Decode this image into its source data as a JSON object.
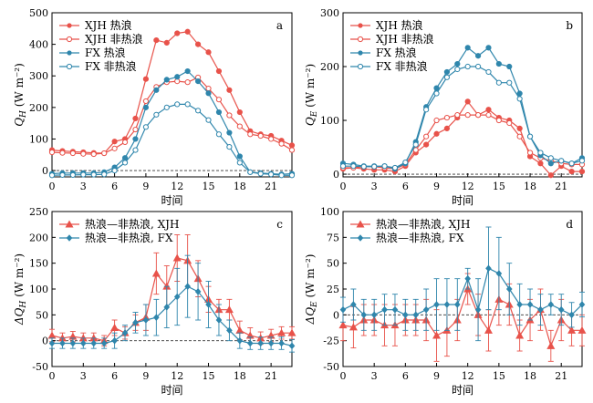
{
  "chart_data": [
    {
      "panel_label": "a",
      "type": "line",
      "ylabel": "Q_H (W m⁻²)",
      "xlabel": "时间",
      "x_ticks": [
        0,
        3,
        6,
        9,
        12,
        15,
        18,
        21
      ],
      "y_ticks": [
        0,
        100,
        200,
        300,
        400,
        500
      ],
      "xlim": [
        0,
        23
      ],
      "ylim": [
        -20,
        500
      ],
      "zero_line": true,
      "legend_position": "top-left",
      "x": [
        0,
        1,
        2,
        3,
        4,
        5,
        6,
        7,
        8,
        9,
        10,
        11,
        12,
        13,
        14,
        15,
        16,
        17,
        18,
        19,
        20,
        21,
        22,
        23
      ],
      "series": [
        {
          "name": "XJH 热浪",
          "color": "#e8524a",
          "marker": "filled-circle",
          "values": [
            65,
            62,
            60,
            58,
            56,
            55,
            92,
            100,
            165,
            290,
            413,
            405,
            435,
            440,
            400,
            375,
            315,
            255,
            185,
            125,
            115,
            110,
            95,
            80
          ]
        },
        {
          "name": "XJH 非热浪",
          "color": "#e8524a",
          "marker": "open-circle",
          "values": [
            58,
            56,
            55,
            53,
            52,
            55,
            70,
            90,
            130,
            220,
            265,
            280,
            283,
            280,
            295,
            260,
            225,
            175,
            140,
            115,
            110,
            100,
            85,
            65
          ]
        },
        {
          "name": "FX 热浪",
          "color": "#2f86ac",
          "marker": "filled-circle",
          "values": [
            -10,
            -8,
            -8,
            -8,
            -8,
            -5,
            10,
            40,
            100,
            200,
            255,
            288,
            297,
            315,
            283,
            245,
            185,
            120,
            45,
            -5,
            -8,
            -10,
            -12,
            -10
          ]
        },
        {
          "name": "FX 非热浪",
          "color": "#2f86ac",
          "marker": "open-circle",
          "values": [
            -15,
            -14,
            -14,
            -13,
            -13,
            -12,
            0,
            25,
            65,
            138,
            177,
            200,
            210,
            210,
            190,
            160,
            115,
            75,
            25,
            -5,
            -10,
            -12,
            -15,
            -15
          ]
        }
      ]
    },
    {
      "panel_label": "b",
      "type": "line",
      "ylabel": "Q_E (W m⁻²)",
      "xlabel": "时间",
      "x_ticks": [
        0,
        3,
        6,
        9,
        12,
        15,
        18,
        21
      ],
      "y_ticks": [
        0,
        100,
        200,
        300
      ],
      "xlim": [
        0,
        23
      ],
      "ylim": [
        -5,
        300
      ],
      "zero_line": true,
      "legend_position": "top-left",
      "x": [
        0,
        1,
        2,
        3,
        4,
        5,
        6,
        7,
        8,
        9,
        10,
        11,
        12,
        13,
        14,
        15,
        16,
        17,
        18,
        19,
        20,
        21,
        22,
        23
      ],
      "series": [
        {
          "name": "XJH 热浪",
          "color": "#e8524a",
          "marker": "filled-circle",
          "values": [
            10,
            12,
            10,
            8,
            8,
            5,
            15,
            40,
            55,
            75,
            85,
            105,
            135,
            110,
            120,
            105,
            100,
            85,
            33,
            20,
            -2,
            15,
            5,
            5
          ]
        },
        {
          "name": "XJH 非热浪",
          "color": "#e8524a",
          "marker": "open-circle",
          "values": [
            12,
            12,
            14,
            14,
            12,
            10,
            18,
            45,
            70,
            100,
            105,
            110,
            110,
            110,
            110,
            100,
            95,
            70,
            40,
            30,
            25,
            20,
            18,
            18
          ]
        },
        {
          "name": "FX 热浪",
          "color": "#2f86ac",
          "marker": "filled-circle",
          "values": [
            20,
            18,
            15,
            15,
            15,
            10,
            20,
            60,
            125,
            160,
            190,
            205,
            235,
            220,
            235,
            205,
            200,
            150,
            70,
            35,
            20,
            25,
            20,
            30
          ]
        },
        {
          "name": "FX 非热浪",
          "color": "#2f86ac",
          "marker": "open-circle",
          "values": [
            15,
            15,
            14,
            14,
            15,
            12,
            22,
            55,
            120,
            150,
            180,
            195,
            200,
            200,
            190,
            170,
            170,
            140,
            70,
            40,
            30,
            25,
            20,
            25
          ]
        }
      ]
    },
    {
      "panel_label": "c",
      "type": "line",
      "ylabel": "ΔQ_H (W m⁻²)",
      "xlabel": "时间",
      "x_ticks": [
        0,
        3,
        6,
        9,
        12,
        15,
        18,
        21
      ],
      "y_ticks": [
        -50,
        0,
        50,
        100,
        150,
        200,
        250
      ],
      "xlim": [
        0,
        23
      ],
      "ylim": [
        -50,
        250
      ],
      "zero_line": true,
      "legend_position": "top-left",
      "x": [
        0,
        1,
        2,
        3,
        4,
        5,
        6,
        7,
        8,
        9,
        10,
        11,
        12,
        13,
        14,
        15,
        16,
        17,
        18,
        19,
        20,
        21,
        22,
        23
      ],
      "series": [
        {
          "name": "热浪—非热浪, XJH",
          "color": "#e8524a",
          "marker": "triangle",
          "values": [
            10,
            5,
            8,
            5,
            5,
            0,
            25,
            15,
            35,
            45,
            130,
            105,
            160,
            155,
            120,
            80,
            60,
            60,
            20,
            10,
            5,
            10,
            15,
            15
          ],
          "error": [
            12,
            10,
            10,
            10,
            10,
            10,
            15,
            12,
            15,
            25,
            40,
            40,
            45,
            50,
            35,
            25,
            20,
            20,
            18,
            15,
            12,
            12,
            12,
            12
          ]
        },
        {
          "name": "热浪—非热浪, FX",
          "color": "#2f86ac",
          "marker": "diamond",
          "values": [
            -5,
            -5,
            -5,
            -5,
            -5,
            -5,
            0,
            15,
            35,
            40,
            45,
            65,
            85,
            105,
            95,
            70,
            40,
            20,
            0,
            -5,
            -5,
            -5,
            -5,
            -10
          ],
          "error": [
            10,
            10,
            10,
            10,
            10,
            10,
            15,
            15,
            20,
            30,
            35,
            40,
            55,
            60,
            55,
            45,
            30,
            20,
            15,
            12,
            12,
            12,
            12,
            12
          ]
        }
      ]
    },
    {
      "panel_label": "d",
      "type": "line",
      "ylabel": "ΔQ_E (W m⁻²)",
      "xlabel": "时间",
      "x_ticks": [
        0,
        3,
        6,
        9,
        12,
        15,
        18,
        21
      ],
      "y_ticks": [
        -50,
        -25,
        0,
        25,
        50,
        75,
        100
      ],
      "xlim": [
        0,
        23
      ],
      "ylim": [
        -50,
        100
      ],
      "zero_line": true,
      "legend_position": "top-left",
      "x": [
        0,
        1,
        2,
        3,
        4,
        5,
        6,
        7,
        8,
        9,
        10,
        11,
        12,
        13,
        14,
        15,
        16,
        17,
        18,
        19,
        20,
        21,
        22,
        23
      ],
      "series": [
        {
          "name": "热浪—非热浪, XJH",
          "color": "#e8524a",
          "marker": "triangle",
          "values": [
            -10,
            -12,
            -5,
            -5,
            -10,
            -10,
            -5,
            -5,
            -5,
            -20,
            -15,
            -5,
            25,
            0,
            -15,
            15,
            10,
            -20,
            -5,
            5,
            -30,
            -5,
            -15,
            -15
          ],
          "error": [
            15,
            20,
            15,
            15,
            20,
            20,
            15,
            15,
            20,
            25,
            25,
            20,
            15,
            20,
            20,
            25,
            20,
            15,
            20,
            20,
            15,
            20,
            15,
            15
          ]
        },
        {
          "name": "热浪—非热浪, FX",
          "color": "#2f86ac",
          "marker": "diamond",
          "values": [
            5,
            10,
            0,
            0,
            5,
            5,
            0,
            0,
            5,
            10,
            10,
            10,
            35,
            5,
            45,
            40,
            25,
            10,
            10,
            5,
            10,
            5,
            0,
            10
          ],
          "error": [
            12,
            15,
            15,
            15,
            15,
            15,
            15,
            15,
            20,
            25,
            25,
            25,
            10,
            30,
            40,
            35,
            25,
            20,
            15,
            15,
            10,
            15,
            12,
            12
          ]
        }
      ]
    }
  ]
}
